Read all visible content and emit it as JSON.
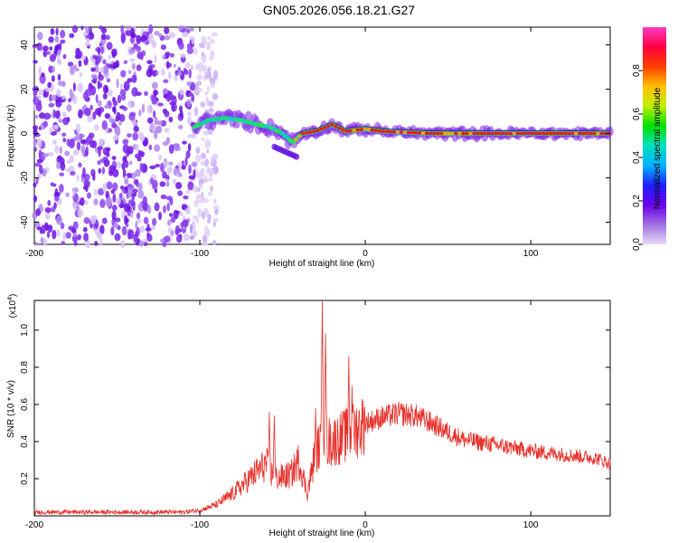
{
  "title": "GN05.2026.056.18.21.G27",
  "chart_data": [
    {
      "type": "heatmap",
      "name": "spectrogram",
      "xlabel": "Height of straight line (km)",
      "ylabel": "Frequency (Hz)",
      "xlim": [
        -200,
        148
      ],
      "ylim": [
        -50,
        48
      ],
      "xticks": [
        -200,
        -100,
        0,
        100
      ],
      "yticks": [
        -40,
        -20,
        0,
        20,
        40
      ],
      "noise_region_x": [
        -200,
        -90
      ],
      "signal_track": [
        {
          "x": -103,
          "y": 3
        },
        {
          "x": -95,
          "y": 6
        },
        {
          "x": -85,
          "y": 7
        },
        {
          "x": -75,
          "y": 6
        },
        {
          "x": -65,
          "y": 4
        },
        {
          "x": -58,
          "y": 3
        },
        {
          "x": -50,
          "y": 0
        },
        {
          "x": -44,
          "y": -4
        },
        {
          "x": -38,
          "y": 0
        },
        {
          "x": -30,
          "y": 1
        },
        {
          "x": -20,
          "y": 4
        },
        {
          "x": -12,
          "y": 1
        },
        {
          "x": 0,
          "y": 2
        },
        {
          "x": 10,
          "y": 1
        },
        {
          "x": 40,
          "y": 0
        },
        {
          "x": 100,
          "y": 0
        },
        {
          "x": 148,
          "y": 0
        }
      ],
      "colorbar": {
        "label": "Normalized spectral amplitude",
        "ticks": [
          "0.0",
          "0.2",
          "0.4",
          "0.6",
          "0.8"
        ],
        "tick_values": [
          0,
          0.2,
          0.4,
          0.6,
          0.8
        ],
        "range": [
          0,
          1
        ],
        "colors": [
          "#e8d8f8",
          "#a070e0",
          "#6a00e8",
          "#2020ff",
          "#00b4ff",
          "#00e0c0",
          "#00e000",
          "#c0f000",
          "#ffc000",
          "#ff4000",
          "#ff0040",
          "#ff3cc8"
        ]
      }
    },
    {
      "type": "line",
      "name": "snr",
      "xlabel": "Height of straight line (km)",
      "ylabel": "SNR (10 * v/v)",
      "y_scale_label": "(x10",
      "y_scale_exponent": "4",
      "xlim": [
        -200,
        148
      ],
      "ylim": [
        0,
        1.16
      ],
      "xticks": [
        -200,
        -100,
        0,
        100
      ],
      "yticks": [
        "0.2",
        "0.4",
        "0.6",
        "0.8",
        "1.0"
      ],
      "ytick_values": [
        0.2,
        0.4,
        0.6,
        0.8,
        1.0
      ],
      "line_color": "#e8302a",
      "baseline": [
        {
          "x": -200,
          "y": 0.02
        },
        {
          "x": -110,
          "y": 0.02
        },
        {
          "x": -100,
          "y": 0.03
        },
        {
          "x": -90,
          "y": 0.06
        },
        {
          "x": -80,
          "y": 0.12
        },
        {
          "x": -70,
          "y": 0.2
        },
        {
          "x": -60,
          "y": 0.28
        },
        {
          "x": -55,
          "y": 0.2
        },
        {
          "x": -45,
          "y": 0.22
        },
        {
          "x": -40,
          "y": 0.3
        },
        {
          "x": -35,
          "y": 0.12
        },
        {
          "x": -30,
          "y": 0.35
        },
        {
          "x": -25,
          "y": 0.4
        },
        {
          "x": -20,
          "y": 0.4
        },
        {
          "x": -15,
          "y": 0.42
        },
        {
          "x": -10,
          "y": 0.44
        },
        {
          "x": 0,
          "y": 0.5
        },
        {
          "x": 10,
          "y": 0.53
        },
        {
          "x": 20,
          "y": 0.55
        },
        {
          "x": 30,
          "y": 0.54
        },
        {
          "x": 40,
          "y": 0.5
        },
        {
          "x": 50,
          "y": 0.45
        },
        {
          "x": 60,
          "y": 0.41
        },
        {
          "x": 80,
          "y": 0.38
        },
        {
          "x": 100,
          "y": 0.35
        },
        {
          "x": 120,
          "y": 0.33
        },
        {
          "x": 140,
          "y": 0.31
        },
        {
          "x": 148,
          "y": 0.28
        }
      ],
      "peaks": [
        {
          "x": -58,
          "y": 0.56
        },
        {
          "x": -55,
          "y": 0.54
        },
        {
          "x": -26,
          "y": 1.16
        },
        {
          "x": -24,
          "y": 0.98
        },
        {
          "x": -10,
          "y": 0.86
        },
        {
          "x": -8,
          "y": 0.7
        },
        {
          "x": -30,
          "y": 0.58
        }
      ]
    }
  ]
}
